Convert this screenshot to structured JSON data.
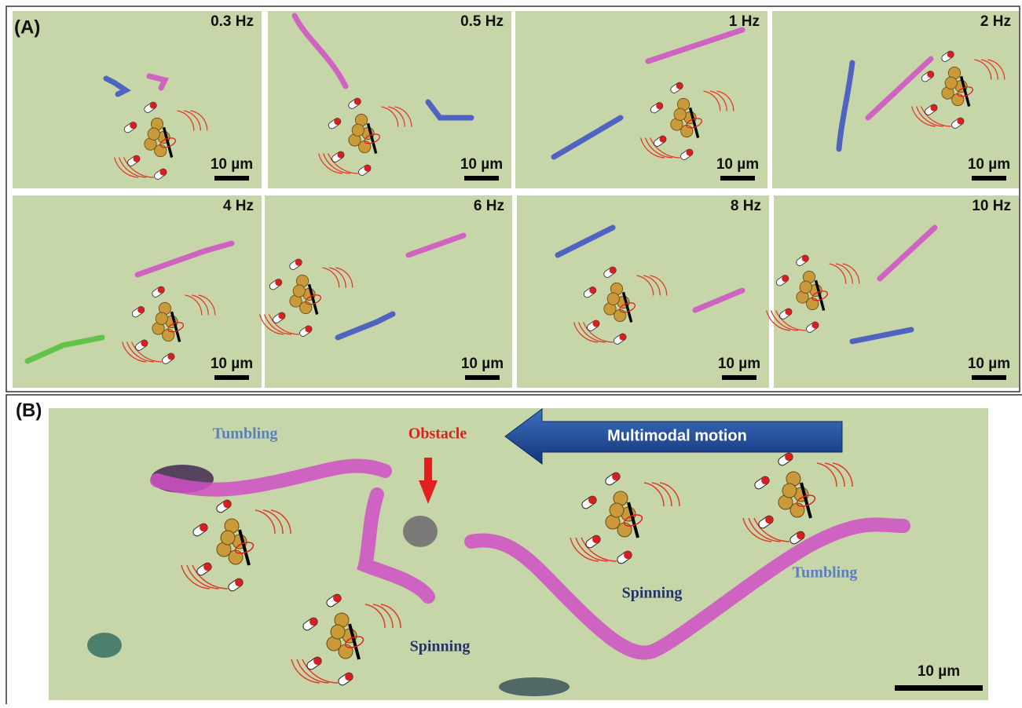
{
  "panel_a": {
    "label": "(A)",
    "panels": [
      {
        "frequency": "0.3 Hz",
        "scale_bar": "10 µm"
      },
      {
        "frequency": "0.5 Hz",
        "scale_bar": "10 µm"
      },
      {
        "frequency": "1 Hz",
        "scale_bar": "10 µm"
      },
      {
        "frequency": "2 Hz",
        "scale_bar": "10 µm"
      },
      {
        "frequency": "4 Hz",
        "scale_bar": "10 µm"
      },
      {
        "frequency": "6 Hz",
        "scale_bar": "10 µm"
      },
      {
        "frequency": "8 Hz",
        "scale_bar": "10 µm"
      },
      {
        "frequency": "10 Hz",
        "scale_bar": "10 µm"
      }
    ]
  },
  "panel_b": {
    "label": "(B)",
    "annotations": {
      "tumbling_left": "Tumbling",
      "obstacle": "Obstacle",
      "direction": "Multimodal motion",
      "spinning_right": "Spinning",
      "tumbling_right": "Tumbling",
      "spinning_center": "Spinning"
    },
    "scale_bar": "10 µm"
  }
}
